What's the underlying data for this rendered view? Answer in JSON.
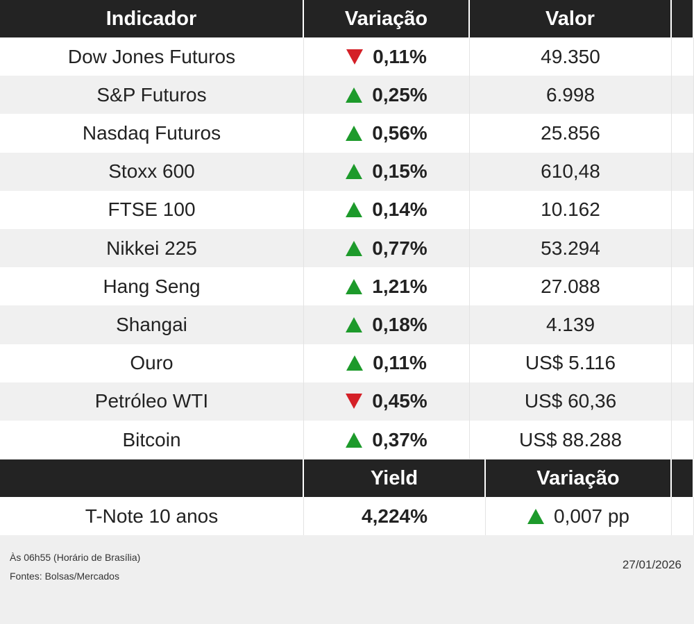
{
  "table": {
    "header": [
      "Indicador",
      "Variação",
      "Valor"
    ],
    "rows": [
      {
        "name": "Dow Jones Futuros",
        "change": "0,11%",
        "value": "49.350",
        "trend": "down"
      },
      {
        "name": "S&P Futuros",
        "change": "0,25%",
        "value": "6.998",
        "trend": "up"
      },
      {
        "name": "Nasdaq Futuros",
        "change": "0,56%",
        "value": "25.856",
        "trend": "up"
      },
      {
        "name": "Stoxx 600",
        "change": "0,15%",
        "value": "610,48",
        "trend": "up"
      },
      {
        "name": "FTSE 100",
        "change": "0,14%",
        "value": "10.162",
        "trend": "up"
      },
      {
        "name": "Nikkei 225",
        "change": "0,77%",
        "value": "53.294",
        "trend": "up"
      },
      {
        "name": "Hang Seng",
        "change": "1,21%",
        "value": "27.088",
        "trend": "up"
      },
      {
        "name": "Shangai",
        "change": "0,18%",
        "value": "4.139",
        "trend": "up"
      },
      {
        "name": "Ouro",
        "change": "0,11%",
        "value": "US$ 5.116",
        "trend": "up"
      },
      {
        "name": "Petróleo WTI",
        "change": "0,45%",
        "value": "US$ 60,36",
        "trend": "down"
      },
      {
        "name": "Bitcoin",
        "change": "0,37%",
        "value": "US$ 88.288",
        "trend": "up"
      }
    ]
  },
  "bonds": {
    "header": [
      "Yield",
      "Variação"
    ],
    "rows": [
      {
        "name": "T-Note 10 anos",
        "yield": "4,224%",
        "change": "0,007 pp",
        "trend": "up"
      }
    ]
  },
  "footer": {
    "time_note": "Às 06h55 (Horário de Brasília)",
    "source": "Fontes: Bolsas/Mercados",
    "date": "27/01/2026"
  },
  "colors": {
    "up": "#1d9a2b",
    "down": "#d42027"
  }
}
